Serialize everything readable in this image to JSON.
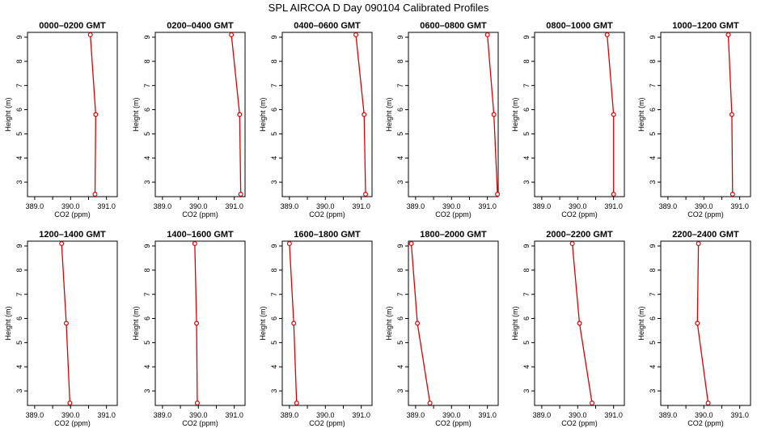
{
  "title": "SPL AIRCOA D  Day 090104  Calibrated Profiles",
  "colors": {
    "series": "#dd0000",
    "axis": "#000000"
  },
  "chart_data": [
    {
      "type": "line",
      "title": "0000–0200 GMT",
      "xlabel": "CO2 (ppm)",
      "ylabel": "Height (m)",
      "xlim": [
        388.8,
        391.3
      ],
      "ylim": [
        2.4,
        9.2
      ],
      "x_ticks": [
        "389.0",
        "390.0",
        "391.0"
      ],
      "x_tick_values": [
        389,
        389.5,
        390,
        390.5,
        391
      ],
      "y_ticks": [
        "3",
        "4",
        "5",
        "6",
        "7",
        "8",
        "9"
      ],
      "series": [
        {
          "heights": [
            9.1,
            5.8,
            2.5
          ],
          "values": [
            390.55,
            390.7,
            390.68
          ]
        }
      ]
    },
    {
      "type": "line",
      "title": "0200–0400 GMT",
      "xlabel": "CO2 (ppm)",
      "ylabel": "Height (m)",
      "xlim": [
        388.8,
        391.3
      ],
      "ylim": [
        2.4,
        9.2
      ],
      "x_ticks": [
        "389.0",
        "390.0",
        "391.0"
      ],
      "x_tick_values": [
        389,
        389.5,
        390,
        390.5,
        391
      ],
      "y_ticks": [
        "3",
        "4",
        "5",
        "6",
        "7",
        "8",
        "9"
      ],
      "series": [
        {
          "heights": [
            9.1,
            5.8,
            2.5
          ],
          "values": [
            390.92,
            391.15,
            391.18
          ]
        }
      ]
    },
    {
      "type": "line",
      "title": "0400–0600 GMT",
      "xlabel": "CO2 (ppm)",
      "ylabel": "Height (m)",
      "xlim": [
        388.8,
        391.3
      ],
      "ylim": [
        2.4,
        9.2
      ],
      "x_ticks": [
        "389.0",
        "390.0",
        "391.0"
      ],
      "x_tick_values": [
        389,
        389.5,
        390,
        390.5,
        391
      ],
      "y_ticks": [
        "3",
        "4",
        "5",
        "6",
        "7",
        "8",
        "9"
      ],
      "series": [
        {
          "heights": [
            9.1,
            5.8,
            2.5
          ],
          "values": [
            390.85,
            391.08,
            391.12
          ]
        }
      ]
    },
    {
      "type": "line",
      "title": "0600–0800 GMT",
      "xlabel": "CO2 (ppm)",
      "ylabel": "Height (m)",
      "xlim": [
        388.8,
        391.3
      ],
      "ylim": [
        2.4,
        9.2
      ],
      "x_ticks": [
        "389.0",
        "390.0",
        "391.0"
      ],
      "x_tick_values": [
        389,
        389.5,
        390,
        390.5,
        391
      ],
      "y_ticks": [
        "3",
        "4",
        "5",
        "6",
        "7",
        "8",
        "9"
      ],
      "series": [
        {
          "heights": [
            9.1,
            5.8,
            2.5
          ],
          "values": [
            391.0,
            391.18,
            391.28
          ]
        }
      ]
    },
    {
      "type": "line",
      "title": "0800–1000 GMT",
      "xlabel": "CO2 (ppm)",
      "ylabel": "Height (m)",
      "xlim": [
        388.8,
        391.3
      ],
      "ylim": [
        2.4,
        9.2
      ],
      "x_ticks": [
        "389.0",
        "390.0",
        "391.0"
      ],
      "x_tick_values": [
        389,
        389.5,
        390,
        390.5,
        391
      ],
      "y_ticks": [
        "3",
        "4",
        "5",
        "6",
        "7",
        "8",
        "9"
      ],
      "series": [
        {
          "heights": [
            9.1,
            5.8,
            2.5
          ],
          "values": [
            390.82,
            391.0,
            391.0
          ]
        }
      ]
    },
    {
      "type": "line",
      "title": "1000–1200 GMT",
      "xlabel": "CO2 (ppm)",
      "ylabel": "Height (m)",
      "xlim": [
        388.8,
        391.3
      ],
      "ylim": [
        2.4,
        9.2
      ],
      "x_ticks": [
        "389.0",
        "390.0",
        "391.0"
      ],
      "x_tick_values": [
        389,
        389.5,
        390,
        390.5,
        391
      ],
      "y_ticks": [
        "3",
        "4",
        "5",
        "6",
        "7",
        "8",
        "9"
      ],
      "series": [
        {
          "heights": [
            9.1,
            5.8,
            2.5
          ],
          "values": [
            390.68,
            390.78,
            390.8
          ]
        }
      ]
    },
    {
      "type": "line",
      "title": "1200–1400 GMT",
      "xlabel": "CO2 (ppm)",
      "ylabel": "Height (m)",
      "xlim": [
        388.8,
        391.3
      ],
      "ylim": [
        2.4,
        9.2
      ],
      "x_ticks": [
        "389.0",
        "390.0",
        "391.0"
      ],
      "x_tick_values": [
        389,
        389.5,
        390,
        390.5,
        391
      ],
      "y_ticks": [
        "3",
        "4",
        "5",
        "6",
        "7",
        "8",
        "9"
      ],
      "series": [
        {
          "heights": [
            9.1,
            5.8,
            2.5
          ],
          "values": [
            389.75,
            389.88,
            389.98
          ]
        }
      ]
    },
    {
      "type": "line",
      "title": "1400–1600 GMT",
      "xlabel": "CO2 (ppm)",
      "ylabel": "Height (m)",
      "xlim": [
        388.8,
        391.3
      ],
      "ylim": [
        2.4,
        9.2
      ],
      "x_ticks": [
        "389.0",
        "390.0",
        "391.0"
      ],
      "x_tick_values": [
        389,
        389.5,
        390,
        390.5,
        391
      ],
      "y_ticks": [
        "3",
        "4",
        "5",
        "6",
        "7",
        "8",
        "9"
      ],
      "series": [
        {
          "heights": [
            9.1,
            5.8,
            2.5
          ],
          "values": [
            389.9,
            389.95,
            389.97
          ]
        }
      ]
    },
    {
      "type": "line",
      "title": "1600–1800 GMT",
      "xlabel": "CO2 (ppm)",
      "ylabel": "Height (m)",
      "xlim": [
        388.8,
        391.3
      ],
      "ylim": [
        2.4,
        9.2
      ],
      "x_ticks": [
        "389.0",
        "390.0",
        "391.0"
      ],
      "x_tick_values": [
        389,
        389.5,
        390,
        390.5,
        391
      ],
      "y_ticks": [
        "3",
        "4",
        "5",
        "6",
        "7",
        "8",
        "9"
      ],
      "series": [
        {
          "heights": [
            9.1,
            5.8,
            2.5
          ],
          "values": [
            389.0,
            389.12,
            389.2
          ]
        }
      ]
    },
    {
      "type": "line",
      "title": "1800–2000 GMT",
      "xlabel": "CO2 (ppm)",
      "ylabel": "Height (m)",
      "xlim": [
        388.8,
        391.3
      ],
      "ylim": [
        2.4,
        9.2
      ],
      "x_ticks": [
        "389.0",
        "390.0",
        "391.0"
      ],
      "x_tick_values": [
        389,
        389.5,
        390,
        390.5,
        391
      ],
      "y_ticks": [
        "3",
        "4",
        "5",
        "6",
        "7",
        "8",
        "9"
      ],
      "series": [
        {
          "heights": [
            9.1,
            5.8,
            2.5
          ],
          "values": [
            388.88,
            389.05,
            389.4
          ]
        }
      ]
    },
    {
      "type": "line",
      "title": "2000–2200 GMT",
      "xlabel": "CO2 (ppm)",
      "ylabel": "Height (m)",
      "xlim": [
        388.8,
        391.3
      ],
      "ylim": [
        2.4,
        9.2
      ],
      "x_ticks": [
        "389.0",
        "390.0",
        "391.0"
      ],
      "x_tick_values": [
        389,
        389.5,
        390,
        390.5,
        391
      ],
      "y_ticks": [
        "3",
        "4",
        "5",
        "6",
        "7",
        "8",
        "9"
      ],
      "series": [
        {
          "heights": [
            9.1,
            5.8,
            2.5
          ],
          "values": [
            389.85,
            390.05,
            390.4
          ]
        }
      ]
    },
    {
      "type": "line",
      "title": "2200–2400 GMT",
      "xlabel": "CO2 (ppm)",
      "ylabel": "Height (m)",
      "xlim": [
        388.8,
        391.3
      ],
      "ylim": [
        2.4,
        9.2
      ],
      "x_ticks": [
        "389.0",
        "390.0",
        "391.0"
      ],
      "x_tick_values": [
        389,
        389.5,
        390,
        390.5,
        391
      ],
      "y_ticks": [
        "3",
        "4",
        "5",
        "6",
        "7",
        "8",
        "9"
      ],
      "series": [
        {
          "heights": [
            9.1,
            5.8,
            2.5
          ],
          "values": [
            389.85,
            389.82,
            390.12
          ]
        }
      ]
    }
  ]
}
